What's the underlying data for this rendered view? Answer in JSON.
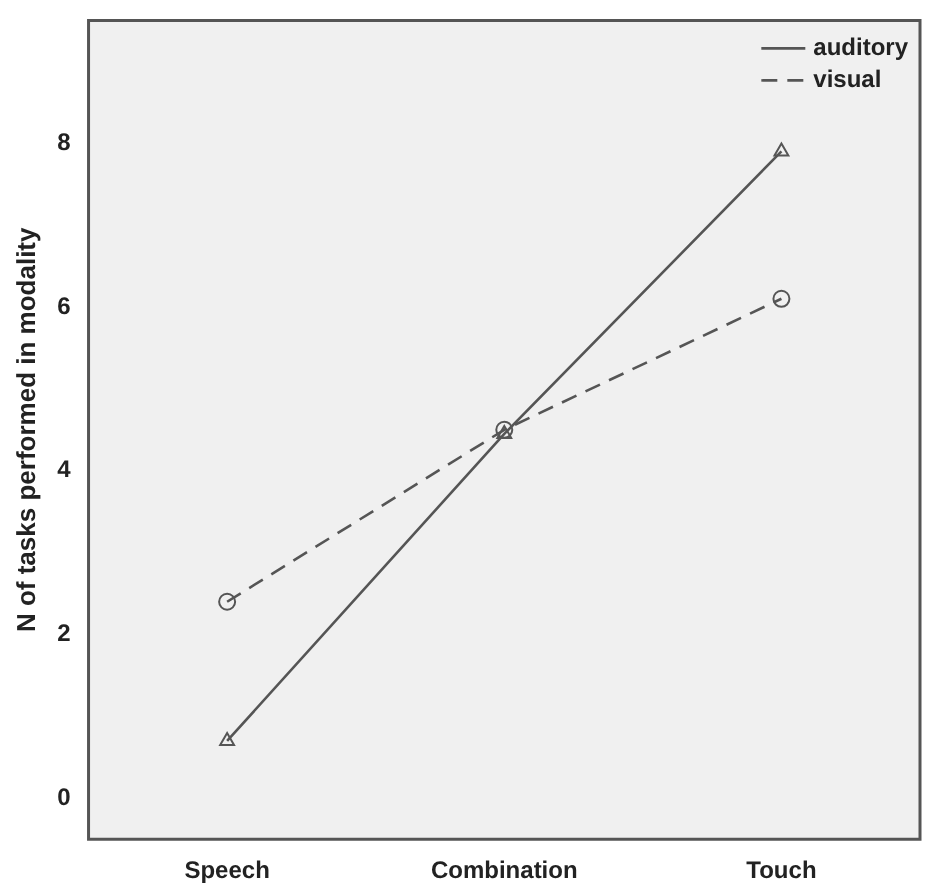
{
  "chart_data": {
    "type": "line",
    "ylabel": "N of tasks performed in modality",
    "categories": [
      "Speech",
      "Combination",
      "Touch"
    ],
    "series": [
      {
        "name": "auditory",
        "color": "#555555",
        "values": [
          0.7,
          4.45,
          7.9
        ],
        "marker": "triangle",
        "line_style": "solid"
      },
      {
        "name": "visual",
        "color": "#555555",
        "values": [
          2.4,
          4.5,
          6.1
        ],
        "marker": "circle",
        "line_style": "dashed"
      }
    ],
    "ylim": [
      -0.5,
      9.5
    ],
    "yticks": [
      0,
      2,
      4,
      6,
      8
    ],
    "grid": false,
    "legend": "top right"
  }
}
